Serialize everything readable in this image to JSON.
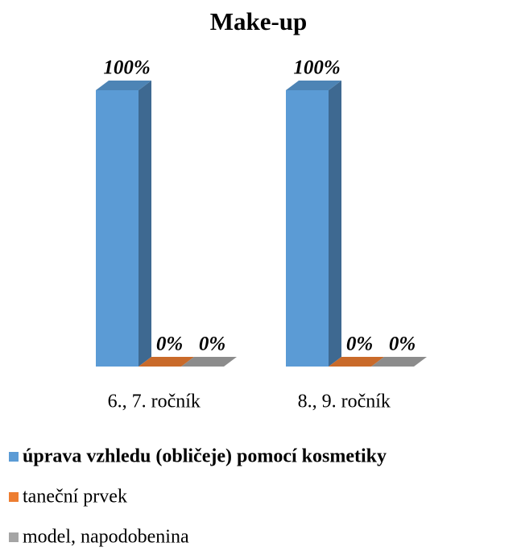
{
  "chart_data": {
    "type": "bar",
    "title": "Make-up",
    "categories": [
      "6., 7. ročník",
      "8., 9. ročník"
    ],
    "series": [
      {
        "name": "úprava vzhledu (obličeje) pomocí kosmetiky",
        "color": "#5b9bd5",
        "values": [
          100,
          100
        ],
        "value_labels": [
          "100%",
          "100%"
        ]
      },
      {
        "name": "taneční prvek",
        "color": "#ed7d31",
        "values": [
          0,
          0
        ],
        "value_labels": [
          "0%",
          "0%"
        ]
      },
      {
        "name": "model, napodobenina",
        "color": "#a5a5a5",
        "values": [
          0,
          0
        ],
        "value_labels": [
          "0%",
          "0%"
        ]
      }
    ]
  }
}
